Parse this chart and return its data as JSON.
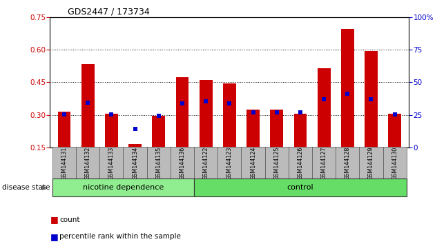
{
  "title": "GDS2447 / 173734",
  "samples": [
    "GSM144131",
    "GSM144132",
    "GSM144133",
    "GSM144134",
    "GSM144135",
    "GSM144136",
    "GSM144122",
    "GSM144123",
    "GSM144124",
    "GSM144125",
    "GSM144126",
    "GSM144127",
    "GSM144128",
    "GSM144129",
    "GSM144130"
  ],
  "count_values": [
    0.315,
    0.535,
    0.305,
    0.165,
    0.295,
    0.475,
    0.46,
    0.445,
    0.325,
    0.325,
    0.305,
    0.515,
    0.695,
    0.595,
    0.305
  ],
  "percentile_values": [
    0.303,
    0.358,
    0.303,
    0.237,
    0.297,
    0.354,
    0.363,
    0.354,
    0.313,
    0.313,
    0.313,
    0.373,
    0.398,
    0.373,
    0.303
  ],
  "groups": [
    {
      "label": "nicotine dependence",
      "start": 0,
      "end": 6,
      "color": "#90ee90"
    },
    {
      "label": "control",
      "start": 6,
      "end": 15,
      "color": "#66dd66"
    }
  ],
  "ylim_left": [
    0.15,
    0.75
  ],
  "ylim_right": [
    0,
    100
  ],
  "yticks_left": [
    0.15,
    0.3,
    0.45,
    0.6,
    0.75
  ],
  "yticks_right": [
    0,
    25,
    50,
    75,
    100
  ],
  "bar_color": "#cc0000",
  "dot_color": "#0000cc",
  "tick_area_color": "#bbbbbb",
  "disease_state_label": "disease state",
  "legend_count": "count",
  "legend_pct": "percentile rank within the sample"
}
